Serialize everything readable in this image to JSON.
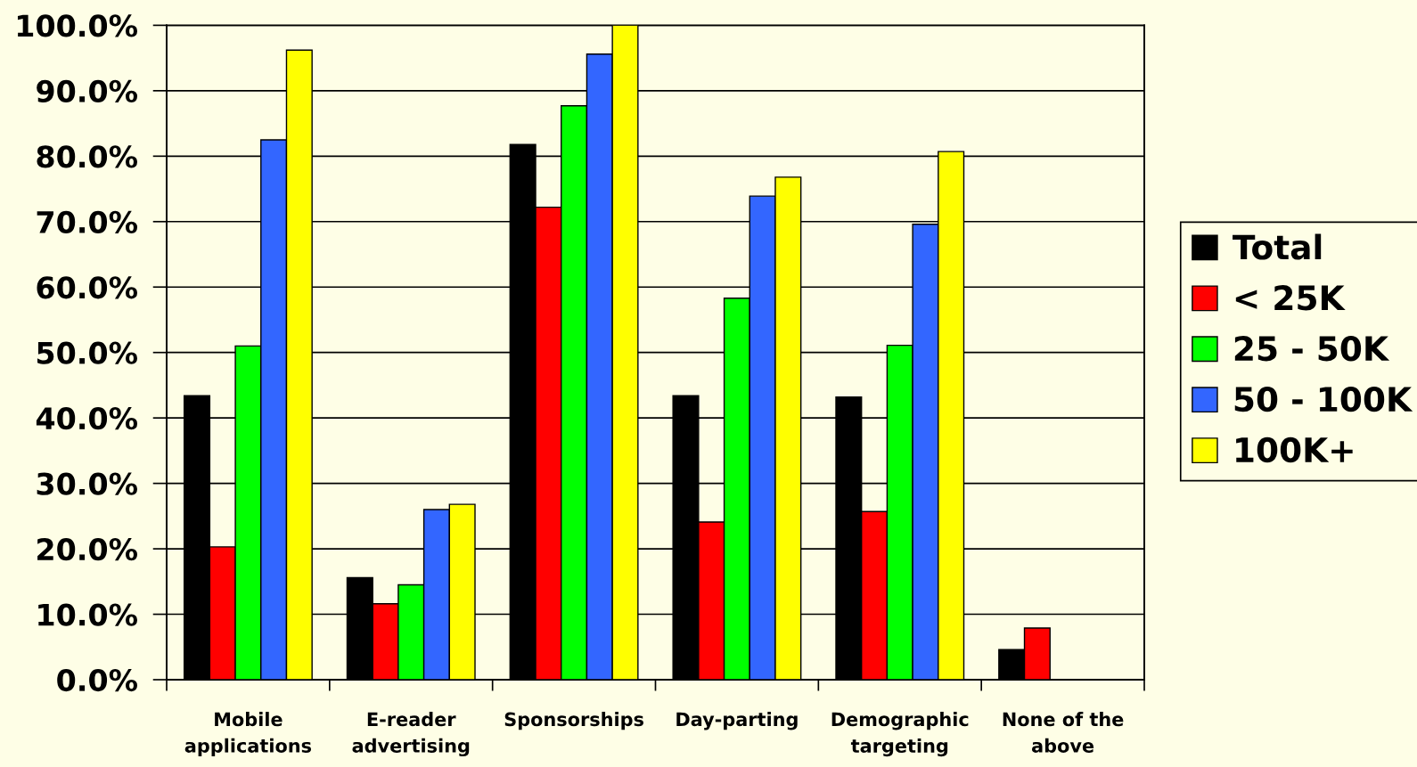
{
  "chart_data": {
    "type": "bar",
    "categories": [
      "Mobile\napplications",
      "E-reader\nadvertising",
      "Sponsorships",
      "Day-parting",
      "Demographic\ntargeting",
      "None of the\nabove"
    ],
    "series": [
      {
        "name": "Total",
        "color": "#000000",
        "values": [
          43.4,
          15.6,
          81.8,
          43.4,
          43.2,
          4.6
        ]
      },
      {
        "name": "< 25K",
        "color": "#ff0000",
        "values": [
          20.3,
          11.6,
          72.2,
          24.1,
          25.7,
          7.9
        ]
      },
      {
        "name": "25 - 50K",
        "color": "#00ff00",
        "values": [
          51.0,
          14.5,
          87.7,
          58.3,
          51.1,
          null
        ]
      },
      {
        "name": "50 - 100K",
        "color": "#3366ff",
        "values": [
          82.5,
          26.0,
          95.6,
          73.9,
          69.6,
          null
        ]
      },
      {
        "name": "100K+",
        "color": "#ffff00",
        "values": [
          96.2,
          26.8,
          100.0,
          76.8,
          80.7,
          null
        ]
      }
    ],
    "ylim": [
      0,
      100
    ],
    "yticks": [
      {
        "value": 0,
        "label": "0.0%"
      },
      {
        "value": 10,
        "label": "10.0%"
      },
      {
        "value": 20,
        "label": "20.0%"
      },
      {
        "value": 30,
        "label": "30.0%"
      },
      {
        "value": 40,
        "label": "40.0%"
      },
      {
        "value": 50,
        "label": "50.0%"
      },
      {
        "value": 60,
        "label": "60.0%"
      },
      {
        "value": 70,
        "label": "70.0%"
      },
      {
        "value": 80,
        "label": "80.0%"
      },
      {
        "value": 90,
        "label": "90.0%"
      },
      {
        "value": 100,
        "label": "100.0%"
      }
    ],
    "grid": "y",
    "legend": "right"
  }
}
